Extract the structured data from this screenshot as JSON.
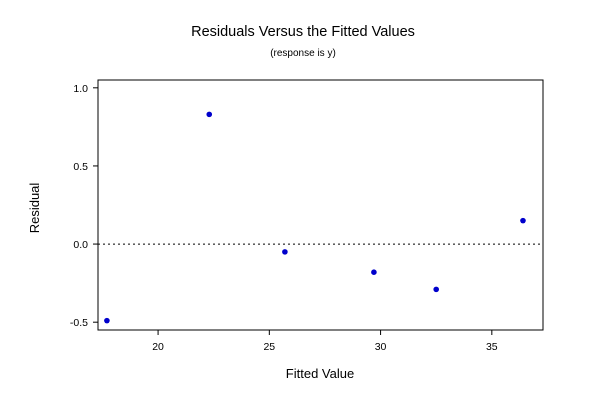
{
  "chart_data": {
    "type": "scatter",
    "title": "Residuals Versus the Fitted Values",
    "subtitle": "(response is y)",
    "xlabel": "Fitted Value",
    "ylabel": "Residual",
    "xlim": [
      17.3,
      37.3
    ],
    "ylim": [
      -0.55,
      1.05
    ],
    "x_ticks": [
      20,
      25,
      30,
      35
    ],
    "x_tick_labels": [
      "20",
      "25",
      "30",
      "35"
    ],
    "y_ticks": [
      1.0,
      0.5,
      0.0,
      -0.5
    ],
    "y_tick_labels": [
      "1.0",
      "0.5",
      "0.0",
      "-0.5"
    ],
    "reference_line": {
      "y": 0,
      "style": "dotted"
    },
    "grid": false,
    "point_color": "#0000cc",
    "series": [
      {
        "x": [
          17.7,
          22.3,
          25.7,
          29.7,
          32.5,
          36.4
        ],
        "y": [
          -0.49,
          0.83,
          -0.05,
          -0.18,
          -0.29,
          0.15
        ]
      }
    ]
  }
}
